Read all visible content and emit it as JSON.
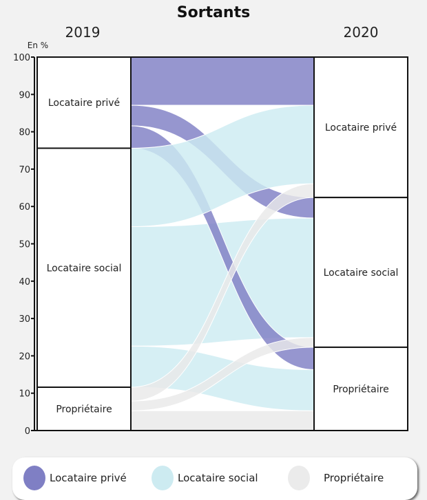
{
  "title": "Sortants",
  "chart_data": {
    "type": "sankey",
    "title": "Sortants",
    "ylabel": "En %",
    "ylim": [
      0,
      100
    ],
    "yticks": [
      0,
      10,
      20,
      30,
      40,
      50,
      60,
      70,
      80,
      90,
      100
    ],
    "columns": [
      "2019",
      "2020"
    ],
    "nodes": [
      "Locataire privé",
      "Locataire social",
      "Propriétaire"
    ],
    "colors": {
      "Locataire privé": "#7f7fc4",
      "Locataire social": "#cdebf1",
      "Propriétaire": "#e9e9e9"
    },
    "flows": [
      {
        "source": "Locataire privé",
        "target": "Locataire privé",
        "value": 12.9
      },
      {
        "source": "Locataire privé",
        "target": "Locataire social",
        "value": 5.5
      },
      {
        "source": "Locataire privé",
        "target": "Propriétaire",
        "value": 6.0
      },
      {
        "source": "Locataire social",
        "target": "Locataire privé",
        "value": 21.0
      },
      {
        "source": "Locataire social",
        "target": "Locataire social",
        "value": 32.0
      },
      {
        "source": "Locataire social",
        "target": "Propriétaire",
        "value": 11.0
      },
      {
        "source": "Propriétaire",
        "target": "Locataire privé",
        "value": 3.7
      },
      {
        "source": "Propriétaire",
        "target": "Locataire social",
        "value": 2.6
      },
      {
        "source": "Propriétaire",
        "target": "Propriétaire",
        "value": 5.3
      }
    ]
  },
  "legend": [
    "Locataire privé",
    "Locataire social",
    "Propriétaire"
  ]
}
